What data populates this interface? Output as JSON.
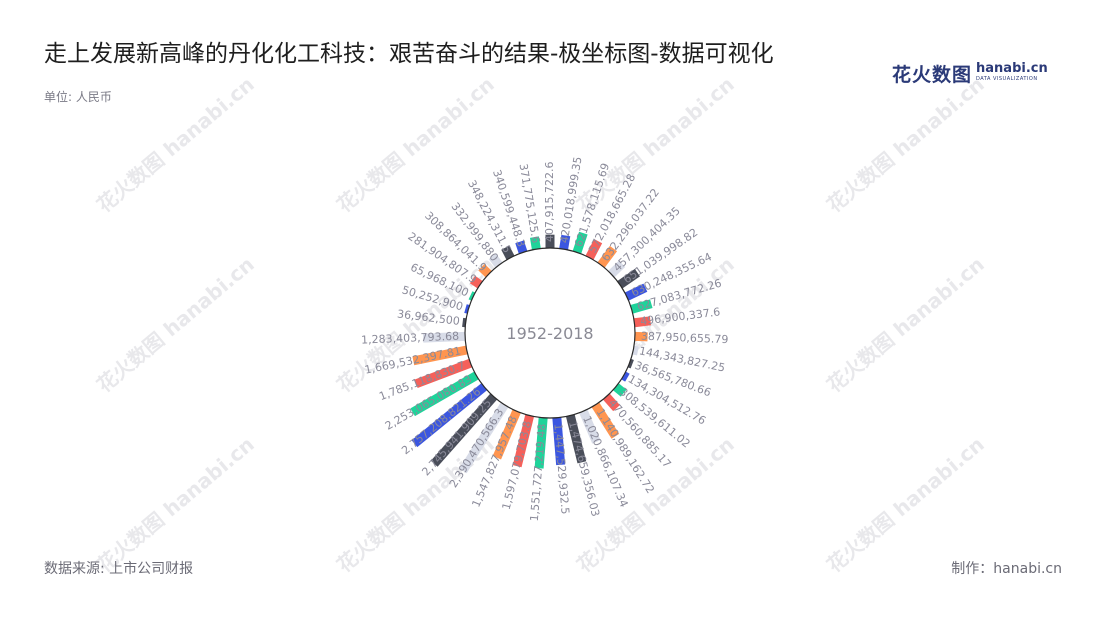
{
  "title": "走上发展新高峰的丹化化工科技：艰苦奋斗的结果-极坐标图-数据可视化",
  "unit": "单位: 人民币",
  "source": "数据来源: 上市公司财报",
  "credit": "制作：hanabi.cn",
  "logo": {
    "main": "花火数图",
    "en": "hanabi.cn",
    "en_sub": "DATA VISUALIZATION"
  },
  "watermark": "花火数图 hanabi.cn",
  "colors": [
    "#4a4e5a",
    "#3b56e0",
    "#1fd39a",
    "#f5605a",
    "#ff9550",
    "#d8dce8"
  ],
  "chart_data": {
    "type": "bar",
    "polar": true,
    "center_label": "1952-2018",
    "labels": [
      "407,915,722.6",
      "420,018,999.35",
      "621,578,115.69",
      "572,018,665.28",
      "632,296,037.22",
      "457,300,404.35",
      "651,039,998.82",
      "630,248,355.64",
      "627,083,772.26",
      "496,900,337.6",
      "387,950,655.79",
      "144,343,827.25",
      "36,565,780.66",
      "134,304,512.76",
      "308,539,611.02",
      "470,560,885.17",
      "1,140,989,162.72",
      "1,020,866,107.34",
      "1,474,659,356.03",
      "1,447,529,932.5",
      "1,551,727,219.48",
      "1,597,079,703.8",
      "1,547,827,957.48",
      "2,390,470,566.3",
      "2,745,941,909.25",
      "2,757,208,821.26",
      "2,253,065,080.83",
      "1,785,118,830.7",
      "1,669,532,397.81",
      "1,283,403,793.68",
      "36,962,500",
      "50,252,900",
      "65,968,100",
      "281,904,807.9",
      "308,864,041.9",
      "332,999,880",
      "348,224,311.5",
      "340,599,448.3",
      "371,775,125.6"
    ],
    "values": [
      407915722.6,
      420018999.35,
      621578115.69,
      572018665.28,
      632296037.22,
      457300404.35,
      651039998.82,
      630248355.64,
      627083772.26,
      496900337.6,
      387950655.79,
      144343827.25,
      36565780.66,
      134304512.76,
      308539611.02,
      470560885.17,
      1140989162.72,
      1020866107.34,
      1474659356.03,
      1447529932.5,
      1551727219.48,
      1597079703.8,
      1547827957.48,
      2390470566.3,
      2745941909.25,
      2757208821.26,
      2253065080.83,
      1785118830.7,
      1669532397.81,
      1283403793.68,
      36962500,
      50252900,
      65968100,
      281904807.9,
      308864041.9,
      332999880,
      348224311.5,
      340599448.3,
      371775125.6
    ]
  }
}
